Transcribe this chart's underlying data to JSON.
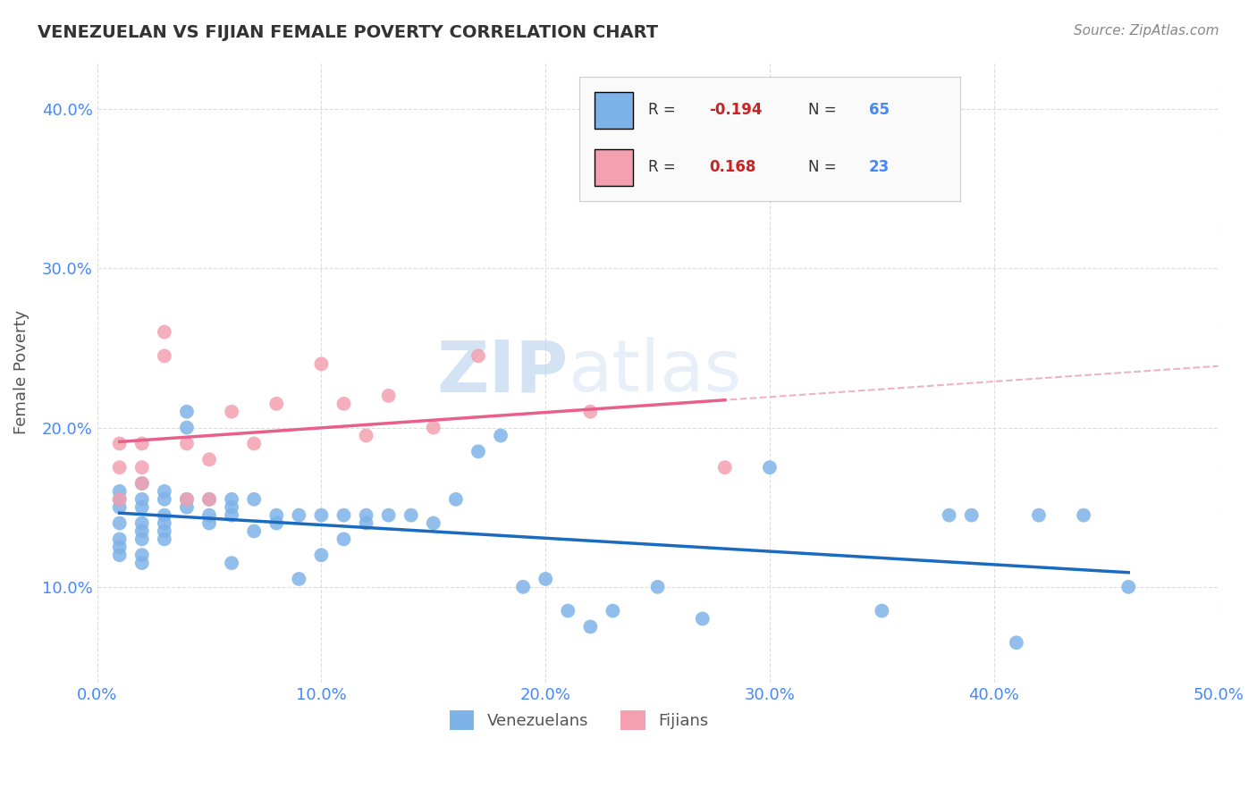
{
  "title": "VENEZUELAN VS FIJIAN FEMALE POVERTY CORRELATION CHART",
  "source": "Source: ZipAtlas.com",
  "xlabel": "",
  "ylabel": "Female Poverty",
  "xlim": [
    0.0,
    0.5
  ],
  "ylim": [
    0.04,
    0.43
  ],
  "xticks": [
    0.0,
    0.1,
    0.2,
    0.3,
    0.4,
    0.5
  ],
  "xtick_labels": [
    "0.0%",
    "10.0%",
    "20.0%",
    "30.0%",
    "40.0%",
    "50.0%"
  ],
  "yticks": [
    0.1,
    0.2,
    0.3,
    0.4
  ],
  "ytick_labels": [
    "10.0%",
    "20.0%",
    "30.0%",
    "40.0%"
  ],
  "venezuelan_color": "#7EB3E8",
  "fijian_color": "#F4A0B0",
  "venezuelan_line_color": "#1a6bbf",
  "fijian_line_color": "#e8608a",
  "fijian_dashed_color": "#e8a0b8",
  "R_venezuelan": -0.194,
  "N_venezuelan": 65,
  "R_fijian": 0.168,
  "N_fijian": 23,
  "venezuelan_x": [
    0.01,
    0.01,
    0.01,
    0.01,
    0.01,
    0.01,
    0.01,
    0.02,
    0.02,
    0.02,
    0.02,
    0.02,
    0.02,
    0.02,
    0.02,
    0.03,
    0.03,
    0.03,
    0.03,
    0.03,
    0.03,
    0.04,
    0.04,
    0.04,
    0.04,
    0.05,
    0.05,
    0.05,
    0.06,
    0.06,
    0.06,
    0.06,
    0.07,
    0.07,
    0.08,
    0.08,
    0.09,
    0.09,
    0.1,
    0.1,
    0.11,
    0.11,
    0.12,
    0.12,
    0.13,
    0.14,
    0.15,
    0.16,
    0.17,
    0.18,
    0.19,
    0.2,
    0.21,
    0.22,
    0.23,
    0.25,
    0.27,
    0.3,
    0.35,
    0.38,
    0.39,
    0.41,
    0.42,
    0.44,
    0.46
  ],
  "venezuelan_y": [
    0.16,
    0.15,
    0.155,
    0.14,
    0.13,
    0.125,
    0.12,
    0.165,
    0.155,
    0.15,
    0.14,
    0.135,
    0.13,
    0.12,
    0.115,
    0.16,
    0.155,
    0.145,
    0.14,
    0.135,
    0.13,
    0.21,
    0.2,
    0.155,
    0.15,
    0.155,
    0.145,
    0.14,
    0.155,
    0.15,
    0.145,
    0.115,
    0.155,
    0.135,
    0.145,
    0.14,
    0.145,
    0.105,
    0.145,
    0.12,
    0.145,
    0.13,
    0.145,
    0.14,
    0.145,
    0.145,
    0.14,
    0.155,
    0.185,
    0.195,
    0.1,
    0.105,
    0.085,
    0.075,
    0.085,
    0.1,
    0.08,
    0.175,
    0.085,
    0.145,
    0.145,
    0.065,
    0.145,
    0.145,
    0.1
  ],
  "fijian_x": [
    0.01,
    0.01,
    0.01,
    0.02,
    0.02,
    0.02,
    0.03,
    0.03,
    0.04,
    0.04,
    0.05,
    0.05,
    0.06,
    0.07,
    0.08,
    0.1,
    0.11,
    0.12,
    0.13,
    0.15,
    0.17,
    0.22,
    0.28
  ],
  "fijian_y": [
    0.155,
    0.175,
    0.19,
    0.175,
    0.19,
    0.165,
    0.26,
    0.245,
    0.155,
    0.19,
    0.155,
    0.18,
    0.21,
    0.19,
    0.215,
    0.24,
    0.215,
    0.195,
    0.22,
    0.2,
    0.245,
    0.21,
    0.175
  ],
  "watermark_zip": "ZIP",
  "watermark_atlas": "atlas",
  "background_color": "#ffffff",
  "grid_color": "#dddddd",
  "tick_color": "#4488ff",
  "ylabel_color": "#555555",
  "title_color": "#333333",
  "source_color": "#888888",
  "legend_text_color": "#333333",
  "legend_R_neg_color": "#cc2222",
  "legend_N_color": "#4488ff",
  "legend_box_facecolor": "#fafafa",
  "legend_box_edgecolor": "#cccccc"
}
